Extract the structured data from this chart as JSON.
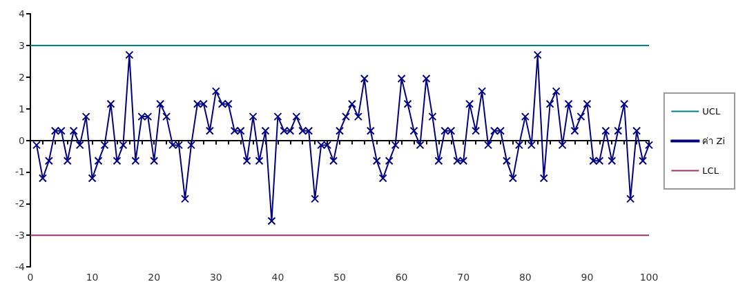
{
  "chart_data": {
    "type": "line",
    "x": [
      1,
      2,
      3,
      4,
      5,
      6,
      7,
      8,
      9,
      10,
      11,
      12,
      13,
      14,
      15,
      16,
      17,
      18,
      19,
      20,
      21,
      22,
      23,
      24,
      25,
      26,
      27,
      28,
      29,
      30,
      31,
      32,
      33,
      34,
      35,
      36,
      37,
      38,
      39,
      40,
      41,
      42,
      43,
      44,
      45,
      46,
      47,
      48,
      49,
      50,
      51,
      52,
      53,
      54,
      55,
      56,
      57,
      58,
      59,
      60,
      61,
      62,
      63,
      64,
      65,
      66,
      67,
      68,
      69,
      70,
      71,
      72,
      73,
      74,
      75,
      76,
      77,
      78,
      79,
      80,
      81,
      82,
      83,
      84,
      85,
      86,
      87,
      88,
      89,
      90,
      91,
      92,
      93,
      94,
      95,
      96,
      97,
      98,
      99,
      100
    ],
    "series": [
      {
        "name": "ค่า Zi",
        "color": "#000080",
        "values": [
          -0.15,
          -1.2,
          -0.65,
          0.3,
          0.3,
          -0.65,
          0.3,
          -0.15,
          0.75,
          -1.2,
          -0.65,
          -0.15,
          1.15,
          -0.65,
          -0.15,
          2.7,
          -0.65,
          0.75,
          0.75,
          -0.65,
          1.15,
          0.75,
          -0.15,
          -0.15,
          -1.85,
          -0.15,
          1.15,
          1.15,
          0.3,
          1.55,
          1.15,
          1.15,
          0.3,
          0.3,
          -0.65,
          0.75,
          -0.65,
          0.3,
          -2.55,
          0.75,
          0.3,
          0.3,
          0.75,
          0.3,
          0.3,
          -1.85,
          -0.15,
          -0.15,
          -0.65,
          0.3,
          0.75,
          1.15,
          0.75,
          1.95,
          0.3,
          -0.65,
          -1.2,
          -0.65,
          -0.15,
          1.95,
          1.15,
          0.3,
          -0.15,
          1.95,
          0.75,
          -0.65,
          0.3,
          0.3,
          -0.65,
          -0.65,
          1.15,
          0.3,
          1.55,
          -0.15,
          0.3,
          0.3,
          -0.65,
          -1.2,
          -0.15,
          0.75,
          -0.15,
          2.7,
          -1.2,
          1.15,
          1.55,
          -0.15,
          1.15,
          0.3,
          0.75,
          1.15,
          -0.65,
          -0.65,
          0.3,
          -0.65,
          0.3,
          1.15,
          -1.85,
          0.3,
          -0.65,
          -0.15
        ]
      }
    ],
    "ref_lines": [
      {
        "axis": "y",
        "value": 3,
        "label": "UCL",
        "color": "#008080"
      },
      {
        "axis": "y",
        "value": -3,
        "label": "LCL",
        "color": "#993366"
      }
    ],
    "xlim": [
      0,
      100
    ],
    "xticks": [
      0,
      10,
      20,
      30,
      40,
      50,
      60,
      70,
      80,
      90,
      100
    ],
    "ylim": [
      -4,
      4
    ],
    "yticks": [
      -4,
      -3,
      -2,
      -1,
      0,
      1,
      2,
      3,
      4
    ],
    "marker": "cross",
    "line_style": "solid",
    "grid": false,
    "legend": "right"
  }
}
